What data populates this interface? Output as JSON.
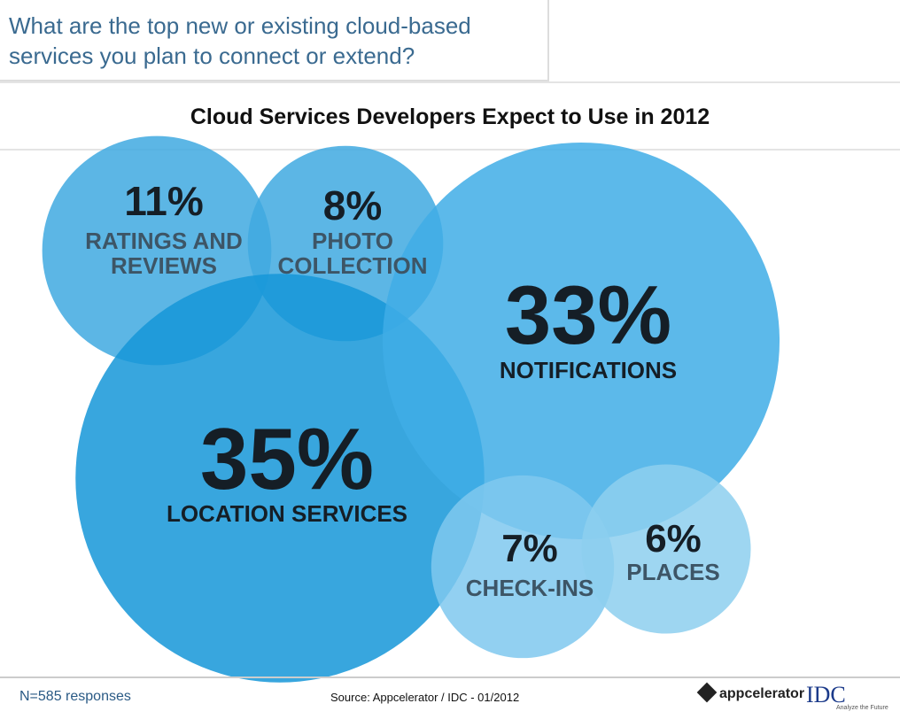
{
  "question": "What are the top new or existing cloud-based services you plan to connect or extend?",
  "chart_data": {
    "type": "bubble",
    "title": "Cloud Services Developers Expect to Use in 2012",
    "categories": [
      "RATINGS AND REVIEWS",
      "PHOTO COLLECTION",
      "LOCATION SERVICES",
      "NOTIFICATIONS",
      "CHECK-INS",
      "PLACES"
    ],
    "values": [
      11,
      8,
      35,
      33,
      7,
      6
    ],
    "value_labels": [
      "11%",
      "8%",
      "35%",
      "33%",
      "7%",
      "6%"
    ],
    "colors": [
      "#3fa9e0",
      "#3fa9e0",
      "#1596d8",
      "#3fade6",
      "#7fc8ee",
      "#8dcfef"
    ]
  },
  "footer": {
    "note": "N=585 responses",
    "source": "Source: Appcelerator / IDC - 01/2012",
    "logo_appcelerator": "appcelerator",
    "logo_idc": "IDC",
    "logo_idc_tagline": "Analyze the Future"
  }
}
